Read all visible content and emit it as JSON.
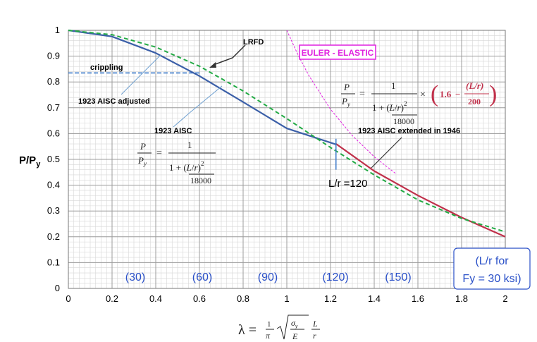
{
  "chart_data": {
    "type": "line",
    "xlim": [
      0,
      2
    ],
    "ylim": [
      0,
      1
    ],
    "x_ticks": [
      "0",
      "0.2",
      "0.4",
      "0.6",
      "0.8",
      "1",
      "1.2",
      "1.4",
      "1.6",
      "1.8",
      "2"
    ],
    "y_ticks": [
      "0",
      "0.1",
      "0.2",
      "0.3",
      "0.4",
      "0.5",
      "0.6",
      "0.7",
      "0.8",
      "0.9",
      "1"
    ],
    "grid": true,
    "ylabel": "P/Py",
    "xlabel_formula": "λ = 1/π √(σy/E) L/r",
    "colors": {
      "lrfd": "#22aa44",
      "aisc1923": "#3b5fa8",
      "aisc1946": "#c0304a",
      "euler": "#e020e0",
      "crippling": "#3a78c8"
    },
    "series": [
      {
        "name": "LRFD",
        "x": [
          0,
          0.2,
          0.4,
          0.6,
          0.8,
          1.0,
          1.2,
          1.4,
          1.6,
          1.8,
          2.0
        ],
        "values": [
          1.0,
          0.983,
          0.935,
          0.861,
          0.765,
          0.658,
          0.546,
          0.44,
          0.343,
          0.271,
          0.219
        ]
      },
      {
        "name": "1923 AISC",
        "x": [
          0,
          0.2,
          0.4,
          0.6,
          0.8,
          1.0,
          1.225
        ],
        "values": [
          1.0,
          0.976,
          0.912,
          0.823,
          0.722,
          0.62,
          0.558
        ]
      },
      {
        "name": "1923 AISC extended in 1946",
        "x": [
          1.225,
          1.4,
          1.6,
          1.8,
          2.0
        ],
        "values": [
          0.56,
          0.455,
          0.36,
          0.275,
          0.2
        ]
      },
      {
        "name": "EULER - ELASTIC",
        "x": [
          1.0,
          1.05,
          1.1,
          1.2,
          1.3,
          1.4,
          1.5
        ],
        "values": [
          1.0,
          0.907,
          0.826,
          0.694,
          0.592,
          0.51,
          0.444
        ]
      },
      {
        "name": "crippling",
        "x": [
          0,
          0.6
        ],
        "values": [
          0.835,
          0.835
        ]
      }
    ],
    "annotations": {
      "lrfd": "LRFD",
      "crippling": "crippling",
      "adjusted": "1923 AISC adjusted",
      "aisc1923": "1923 AISC",
      "aisc1946": "1923 AISC extended in 1946",
      "euler": "EULER - ELASTIC",
      "lr120": "L/r =120",
      "slenderness": [
        "(30)",
        "(60)",
        "(90)",
        "(120)",
        "(150)"
      ],
      "lr_for_line1": "(L/r for",
      "lr_for_line2": "Fy = 30 ksi)",
      "formula_constant": "18000",
      "formula_factor": "1.6",
      "formula_divisor": "200"
    }
  }
}
